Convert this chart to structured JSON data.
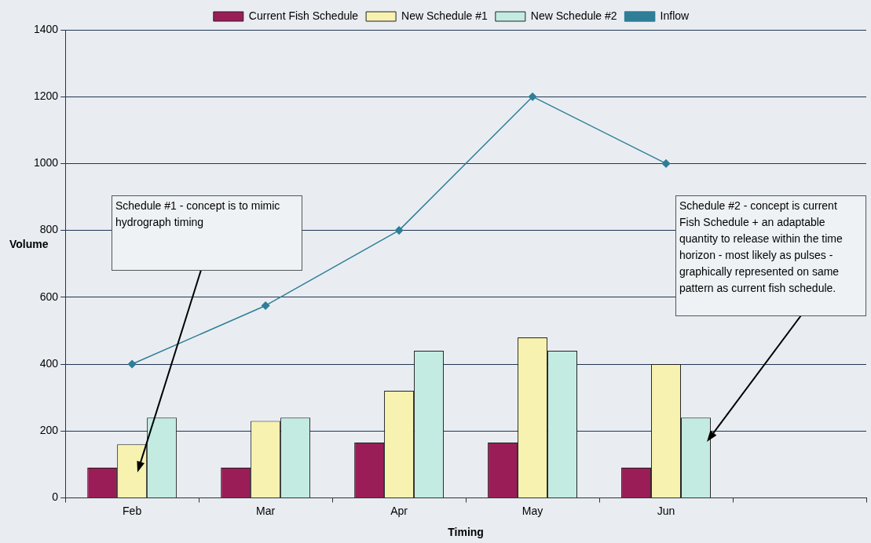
{
  "chart_data": {
    "type": "bar",
    "xlabel": "Timing",
    "ylabel": "Volume",
    "categories": [
      "Feb",
      "Mar",
      "Apr",
      "May",
      "Jun",
      null
    ],
    "series": [
      {
        "name": "Current Fish Schedule",
        "color": "#9b1d57",
        "values": [
          90,
          90,
          165,
          165,
          90,
          null
        ]
      },
      {
        "name": "New Schedule #1",
        "color": "#f7f2b0",
        "values": [
          160,
          230,
          320,
          480,
          400,
          null
        ]
      },
      {
        "name": "New Schedule #2",
        "color": "#c3ebe2",
        "values": [
          240,
          240,
          440,
          440,
          240,
          null
        ]
      },
      {
        "name": "Inflow",
        "type": "line",
        "color": "#2f7e98",
        "values": [
          400,
          575,
          800,
          1200,
          1000,
          null
        ]
      }
    ],
    "ylim": [
      0,
      1400
    ],
    "yticks": [
      0,
      200,
      400,
      600,
      800,
      1000,
      1200,
      1400
    ],
    "grid": "y",
    "legend": "top",
    "marker": "diamond",
    "line_style": "solid",
    "annotations": [
      "Schedule #1 - concept is to mimic hydrograph timing",
      "Schedule #2 - concept is current Fish Schedule + an adaptable quantity to release within the time horizon - most likely as pulses - graphically represented on same pattern as current fish schedule."
    ]
  }
}
